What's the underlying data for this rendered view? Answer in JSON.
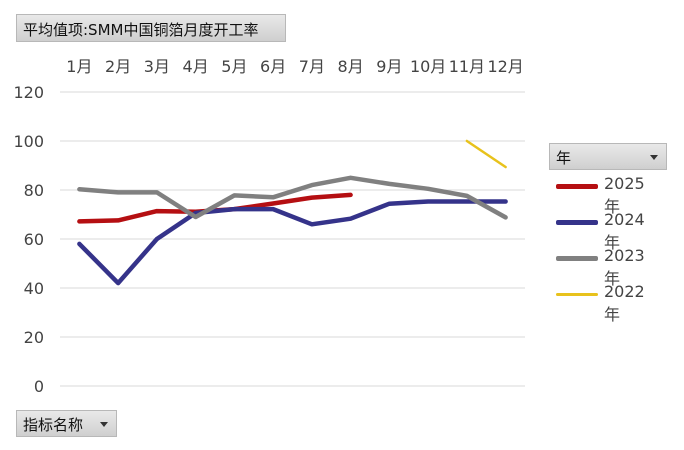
{
  "title_button": {
    "label": "平均值项:SMM中国铜箔月度开工率"
  },
  "indicator_button": {
    "label": "指标名称"
  },
  "year_filter": {
    "label": "年"
  },
  "chart_data": {
    "type": "line",
    "categories": [
      "1月",
      "2月",
      "3月",
      "4月",
      "5月",
      "6月",
      "7月",
      "8月",
      "9月",
      "10月",
      "11月",
      "12月"
    ],
    "ylim": [
      0,
      120
    ],
    "yticks": [
      0,
      20,
      40,
      60,
      80,
      100,
      120
    ],
    "grid": true,
    "legend_position": "right",
    "series": [
      {
        "name": "2025年",
        "color": "#b50f12",
        "values": [
          67.2,
          67.6,
          71.4,
          71.1,
          72.2,
          74.5,
          76.9,
          78.0,
          null,
          null,
          null,
          null
        ]
      },
      {
        "name": "2024年",
        "color": "#35338a",
        "values": [
          58.0,
          42.0,
          60.0,
          70.6,
          72.2,
          72.2,
          66.0,
          68.3,
          74.4,
          75.3,
          75.3,
          75.3
        ]
      },
      {
        "name": "2023年",
        "color": "#808080",
        "values": [
          80.3,
          79.0,
          79.0,
          69.0,
          77.8,
          77.0,
          82.0,
          85.0,
          82.5,
          80.5,
          77.6,
          68.8
        ]
      },
      {
        "name": "2022年",
        "color": "#e8c21c",
        "values": [
          null,
          null,
          null,
          null,
          null,
          null,
          null,
          null,
          null,
          null,
          100.0,
          89.4
        ]
      }
    ]
  }
}
